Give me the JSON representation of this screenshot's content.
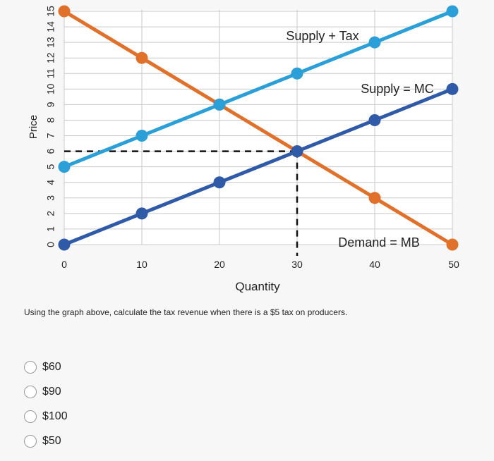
{
  "chart_data": {
    "type": "line",
    "xlabel": "Quantity",
    "ylabel": "Price",
    "xlim": [
      0,
      50
    ],
    "ylim": [
      0,
      15
    ],
    "x_ticks": [
      "0",
      "10",
      "20",
      "30",
      "40",
      "50"
    ],
    "y_ticks": [
      "0",
      "1",
      "2",
      "3",
      "4",
      "5",
      "6",
      "7",
      "8",
      "9",
      "10",
      "11",
      "12",
      "13",
      "14",
      "15"
    ],
    "grid": true,
    "series": [
      {
        "name": "Demand = MB",
        "color": "#e0702a",
        "points": [
          [
            0,
            15
          ],
          [
            10,
            12
          ],
          [
            20,
            9
          ],
          [
            30,
            6
          ],
          [
            40,
            3
          ],
          [
            50,
            0
          ]
        ]
      },
      {
        "name": "Supply + Tax",
        "color": "#2a9fd8",
        "points": [
          [
            0,
            5
          ],
          [
            10,
            7
          ],
          [
            20,
            9
          ],
          [
            30,
            11
          ],
          [
            40,
            13
          ],
          [
            50,
            15
          ]
        ]
      },
      {
        "name": "Supply = MC",
        "color": "#2f5aa8",
        "points": [
          [
            0,
            0
          ],
          [
            10,
            2
          ],
          [
            20,
            4
          ],
          [
            30,
            6
          ],
          [
            40,
            8
          ],
          [
            50,
            10
          ]
        ]
      }
    ],
    "reference_lines": {
      "x": 30,
      "y": 6,
      "style": "dashed"
    }
  },
  "question": {
    "text": "Using the graph above, calculate the tax revenue when there is a $5 tax on producers.",
    "options": [
      "$60",
      "$90",
      "$100",
      "$50"
    ]
  }
}
